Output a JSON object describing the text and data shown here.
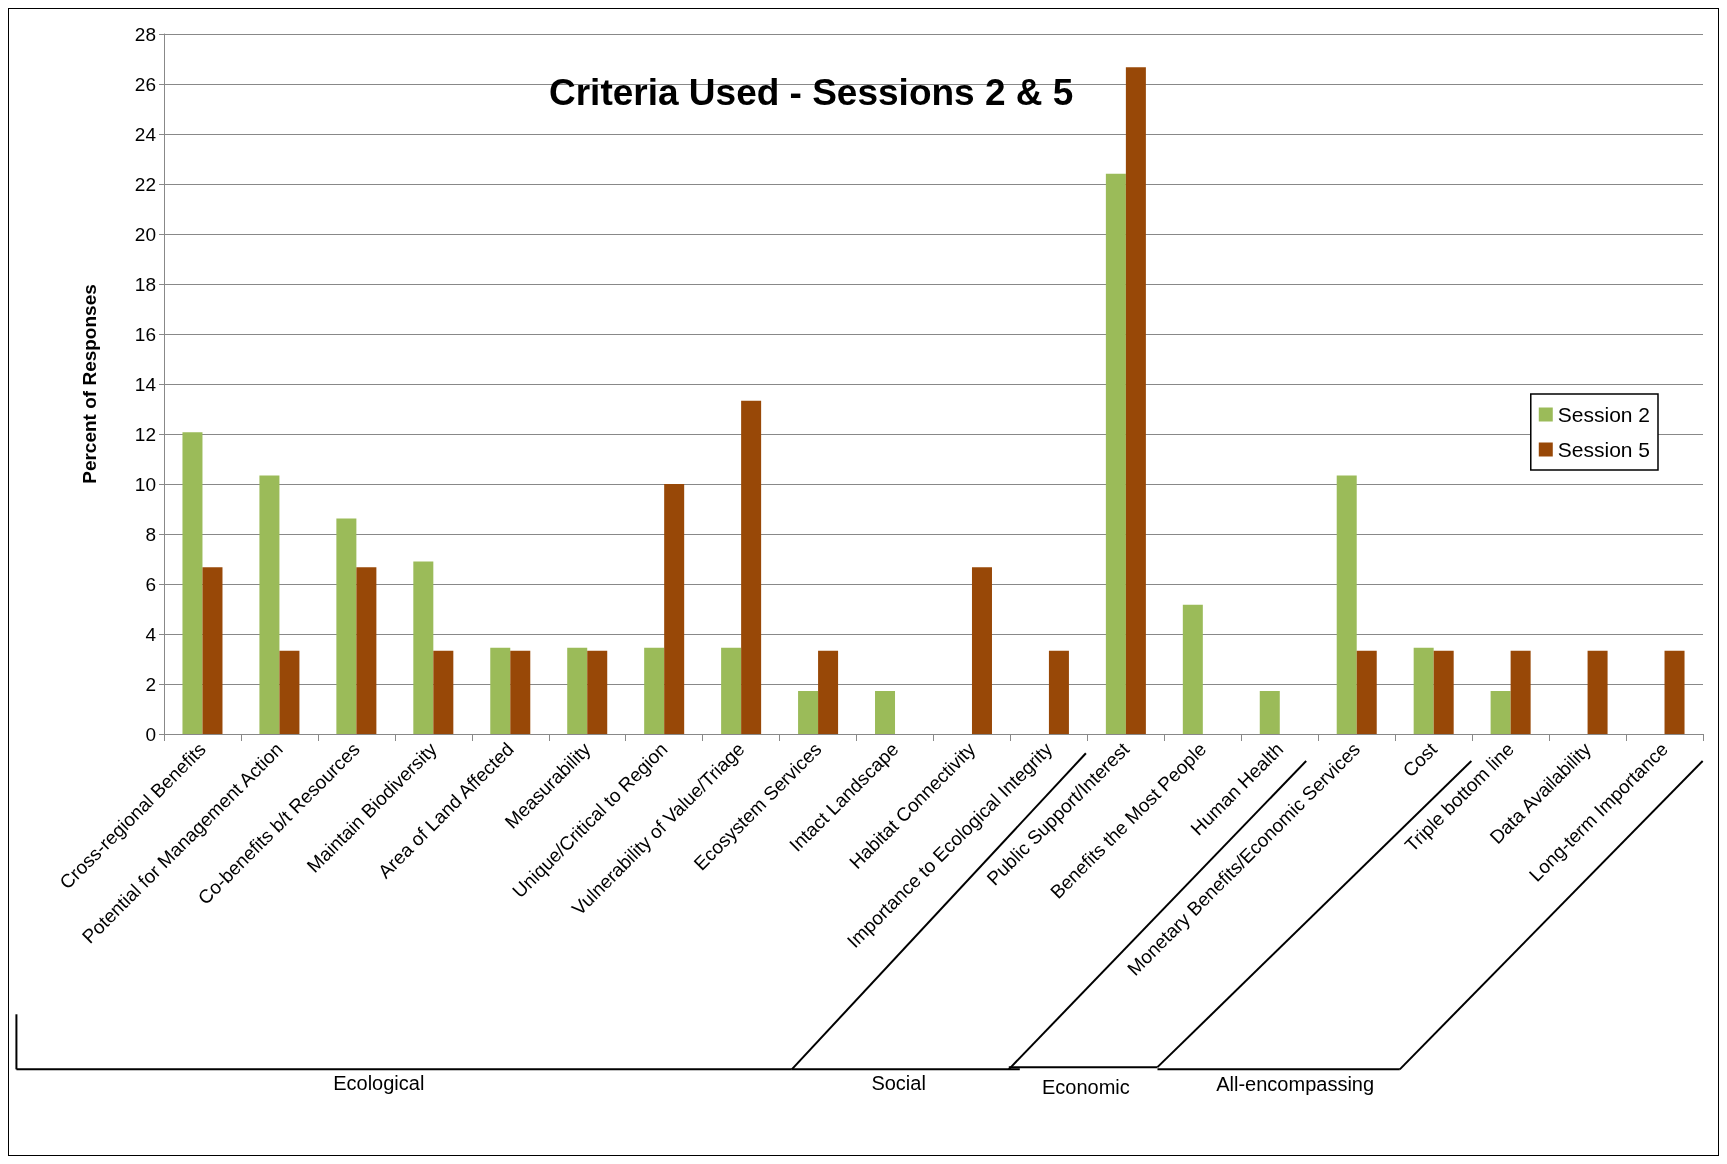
{
  "chart_data": {
    "type": "bar",
    "title": "Criteria Used - Sessions 2 & 5",
    "ylabel": "Percent of Responses",
    "categories": [
      "Cross-regional Benefits",
      "Potential for Management Action",
      "Co-benefits b/t Resources",
      "Maintain Biodiversity",
      "Area of Land Affected",
      "Measurability",
      "Unique/Critical to Region",
      "Vulnerability of Value/Triage",
      "Ecosystem Services",
      "Intact Landscape",
      "Habitat Connectivity",
      "Importance to Ecological Integrity",
      "Public Support/Interest",
      "Benefits the Most People",
      "Human Health",
      "Monetary Benefits/Economic Services",
      "Cost",
      "Triple bottom line",
      "Data Availability",
      "Long-term Importance"
    ],
    "series": [
      {
        "name": "Session 2",
        "color": "#9bbb59",
        "values": [
          12.07,
          10.34,
          8.62,
          6.9,
          3.45,
          3.45,
          3.45,
          3.45,
          1.72,
          1.72,
          null,
          null,
          22.41,
          5.17,
          1.72,
          10.34,
          3.45,
          1.72,
          null,
          null
        ]
      },
      {
        "name": "Session 5",
        "color": "#984807",
        "values": [
          6.67,
          3.33,
          6.67,
          3.33,
          3.33,
          3.33,
          10,
          13.33,
          3.33,
          null,
          6.67,
          3.33,
          26.67,
          null,
          null,
          3.33,
          3.33,
          3.33,
          3.33,
          3.33
        ]
      }
    ],
    "ylim": [
      0,
      28
    ],
    "yticks": [
      0,
      2,
      4,
      6,
      8,
      10,
      12,
      14,
      16,
      18,
      20,
      22,
      24,
      26,
      28
    ],
    "grid": "y",
    "legend": "right",
    "annotations": [
      "Ecological",
      "Social",
      "Economic",
      "All-encompassing"
    ]
  }
}
